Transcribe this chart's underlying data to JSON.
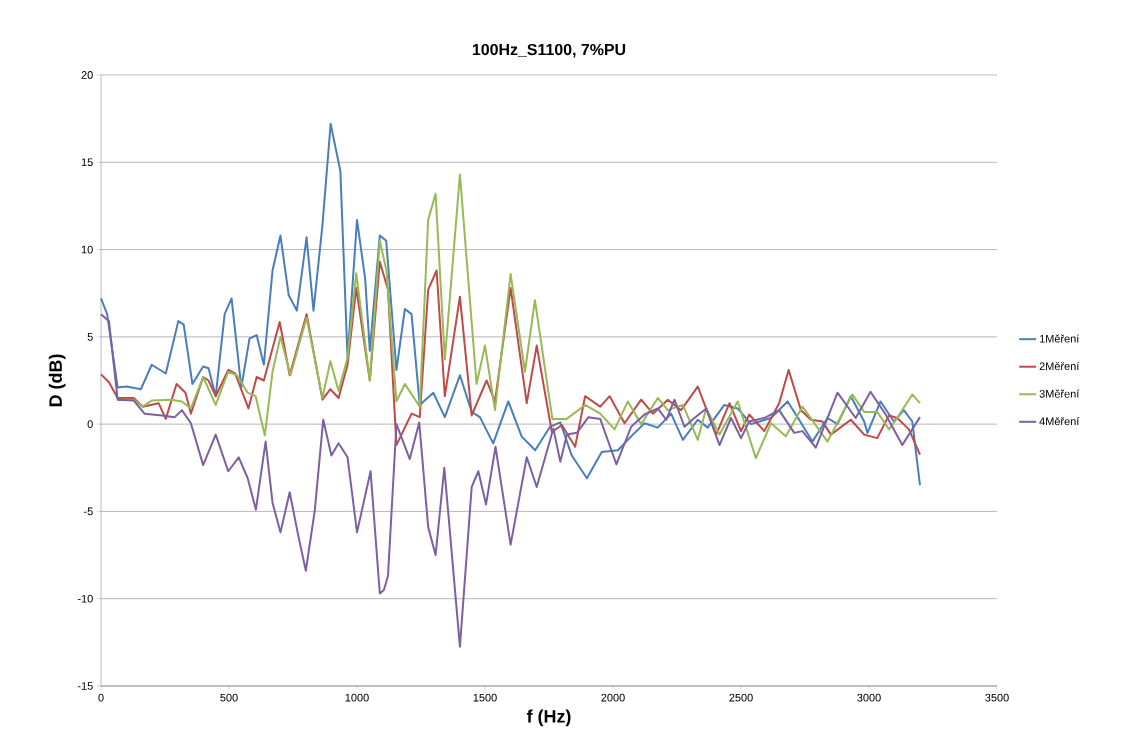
{
  "chart_data": {
    "type": "line",
    "title": "100Hz_S1100, 7%PU",
    "xlabel": "f (Hz)",
    "ylabel": "D (dB)",
    "xlim": [
      0,
      3500
    ],
    "xticks": [
      0,
      500,
      1000,
      1500,
      2000,
      2500,
      3000,
      3500
    ],
    "ylim": [
      -15,
      20
    ],
    "yticks": [
      -15,
      -10,
      -5,
      0,
      5,
      10,
      15,
      20
    ],
    "grid": "y",
    "legend": "right",
    "series": [
      {
        "name": "1Měření",
        "color": "#4a7ebb",
        "x": [
          0,
          24,
          65,
          100,
          156,
          198,
          253,
          302,
          323,
          357,
          399,
          420,
          448,
          483,
          510,
          548,
          580,
          608,
          636,
          670,
          701,
          733,
          765,
          803,
          830,
          865,
          897,
          935,
          963,
          1000,
          1032,
          1050,
          1089,
          1114,
          1154,
          1187,
          1213,
          1245,
          1298,
          1343,
          1402,
          1448,
          1480,
          1532,
          1591,
          1643,
          1696,
          1754,
          1794,
          1839,
          1898,
          1956,
          2019,
          2071,
          2123,
          2175,
          2227,
          2273,
          2331,
          2370,
          2435,
          2487,
          2539,
          2617,
          2682,
          2727,
          2779,
          2838,
          2877,
          2929,
          2981,
          2994,
          3045,
          3097,
          3136,
          3169,
          3199
        ],
        "values": [
          7.2,
          6.3,
          2.1,
          2.15,
          2.0,
          3.4,
          2.9,
          5.9,
          5.7,
          2.3,
          3.3,
          3.2,
          1.6,
          6.3,
          7.2,
          2.1,
          4.9,
          5.1,
          3.4,
          8.8,
          10.8,
          7.4,
          6.5,
          10.7,
          6.5,
          11.4,
          17.2,
          14.5,
          3.8,
          11.7,
          8.3,
          4.2,
          10.8,
          10.5,
          3.1,
          6.6,
          6.3,
          1.1,
          1.8,
          0.4,
          2.8,
          0.7,
          0.4,
          -1.1,
          1.3,
          -0.7,
          -1.5,
          -0.15,
          0.1,
          -1.8,
          -3.1,
          -1.6,
          -1.5,
          -0.7,
          0.05,
          -0.2,
          0.6,
          -0.9,
          0.25,
          -0.2,
          1.1,
          0.9,
          0.0,
          0.35,
          1.3,
          0.25,
          -1.0,
          0.35,
          0.0,
          1.6,
          0.15,
          -0.5,
          1.3,
          0.15,
          0.8,
          0.15,
          -3.5
        ]
      },
      {
        "name": "2Měření",
        "color": "#be4b48",
        "x": [
          0,
          31,
          65,
          128,
          163,
          225,
          253,
          295,
          330,
          351,
          399,
          420,
          448,
          497,
          524,
          576,
          608,
          636,
          698,
          737,
          803,
          865,
          896,
          928,
          963,
          997,
          1050,
          1089,
          1121,
          1154,
          1213,
          1245,
          1278,
          1311,
          1343,
          1402,
          1448,
          1506,
          1539,
          1600,
          1663,
          1702,
          1761,
          1800,
          1852,
          1891,
          1950,
          1987,
          2045,
          2110,
          2156,
          2214,
          2266,
          2331,
          2403,
          2455,
          2500,
          2532,
          2591,
          2649,
          2686,
          2734,
          2773,
          2818,
          2851,
          2929,
          2981,
          3032,
          3078,
          3110,
          3156,
          3199
        ],
        "values": [
          2.85,
          2.4,
          1.5,
          1.5,
          1.0,
          1.2,
          0.3,
          2.3,
          1.8,
          0.6,
          2.7,
          2.5,
          1.6,
          3.1,
          2.9,
          0.9,
          2.7,
          2.5,
          5.85,
          2.8,
          6.3,
          1.4,
          2.0,
          1.5,
          3.4,
          7.8,
          2.5,
          9.3,
          7.7,
          -1.2,
          0.6,
          0.4,
          7.7,
          8.8,
          1.6,
          7.3,
          0.5,
          2.5,
          1.3,
          7.8,
          1.2,
          4.5,
          -0.45,
          -0.05,
          -1.3,
          1.6,
          1.0,
          1.6,
          0.05,
          1.4,
          0.6,
          1.4,
          0.8,
          2.15,
          -0.6,
          1.2,
          -0.4,
          0.55,
          -0.4,
          1.2,
          3.1,
          0.8,
          0.25,
          0.15,
          -0.6,
          0.25,
          -0.6,
          -0.8,
          0.5,
          0.35,
          -0.3,
          -1.75
        ]
      },
      {
        "name": "3Měření",
        "color": "#98b954",
        "x": [
          65,
          128,
          163,
          198,
          274,
          316,
          351,
          399,
          448,
          497,
          531,
          573,
          604,
          640,
          670,
          701,
          740,
          803,
          865,
          896,
          928,
          963,
          997,
          1050,
          1089,
          1115,
          1154,
          1187,
          1245,
          1278,
          1307,
          1343,
          1402,
          1467,
          1500,
          1539,
          1600,
          1656,
          1695,
          1763,
          1819,
          1891,
          1950,
          2006,
          2058,
          2110,
          2175,
          2214,
          2273,
          2331,
          2364,
          2416,
          2487,
          2558,
          2617,
          2675,
          2740,
          2838,
          2935,
          2981,
          3032,
          3078,
          3110,
          3169,
          3199
        ],
        "values": [
          1.4,
          1.4,
          1.0,
          1.35,
          1.4,
          1.3,
          0.9,
          2.7,
          1.1,
          3.0,
          2.8,
          1.8,
          1.6,
          -0.65,
          3.0,
          5.0,
          2.8,
          6.1,
          1.5,
          3.6,
          1.9,
          3.8,
          8.65,
          2.5,
          10.5,
          8.8,
          1.3,
          2.3,
          1.0,
          11.7,
          13.2,
          3.7,
          14.3,
          2.3,
          4.5,
          0.8,
          8.6,
          3.0,
          7.1,
          0.3,
          0.3,
          1.1,
          0.6,
          -0.3,
          1.3,
          0.0,
          1.5,
          0.8,
          1.1,
          -0.9,
          0.9,
          -0.6,
          1.3,
          -1.95,
          0.05,
          -0.7,
          1.0,
          -1.0,
          1.7,
          0.7,
          0.7,
          -0.3,
          0.35,
          1.7,
          1.2
        ]
      },
      {
        "name": "4Měření",
        "color": "#7d60a0",
        "x": [
          0,
          31,
          65,
          128,
          170,
          239,
          288,
          316,
          351,
          399,
          448,
          497,
          538,
          573,
          605,
          643,
          670,
          701,
          737,
          768,
          800,
          835,
          868,
          900,
          928,
          963,
          1000,
          1053,
          1089,
          1105,
          1121,
          1154,
          1206,
          1243,
          1278,
          1307,
          1341,
          1402,
          1448,
          1474,
          1504,
          1541,
          1600,
          1663,
          1702,
          1767,
          1794,
          1820,
          1859,
          1904,
          1950,
          2013,
          2071,
          2123,
          2175,
          2208,
          2240,
          2279,
          2318,
          2364,
          2416,
          2461,
          2500,
          2532,
          2591,
          2649,
          2708,
          2740,
          2792,
          2877,
          2948,
          3006,
          3065,
          3130,
          3199
        ],
        "values": [
          6.3,
          5.9,
          1.4,
          1.35,
          0.6,
          0.5,
          0.4,
          0.8,
          0.05,
          -2.35,
          -0.6,
          -2.7,
          -1.9,
          -3.1,
          -4.9,
          -1.0,
          -4.5,
          -6.2,
          -3.9,
          -6.2,
          -8.4,
          -4.95,
          0.25,
          -1.8,
          -1.1,
          -1.9,
          -6.2,
          -2.7,
          -9.7,
          -9.5,
          -8.7,
          0.0,
          -2.0,
          0.1,
          -5.9,
          -7.5,
          -2.5,
          -12.75,
          -3.6,
          -2.7,
          -4.6,
          -1.3,
          -6.9,
          -1.9,
          -3.6,
          -0.25,
          -2.15,
          -0.6,
          -0.5,
          0.4,
          0.3,
          -2.3,
          -0.15,
          0.55,
          0.9,
          0.25,
          1.4,
          -0.15,
          0.35,
          0.9,
          -1.2,
          0.35,
          -0.8,
          0.15,
          0.35,
          0.8,
          -0.5,
          -0.4,
          -1.35,
          1.8,
          0.35,
          1.85,
          0.55,
          -1.2,
          0.4
        ]
      }
    ]
  }
}
